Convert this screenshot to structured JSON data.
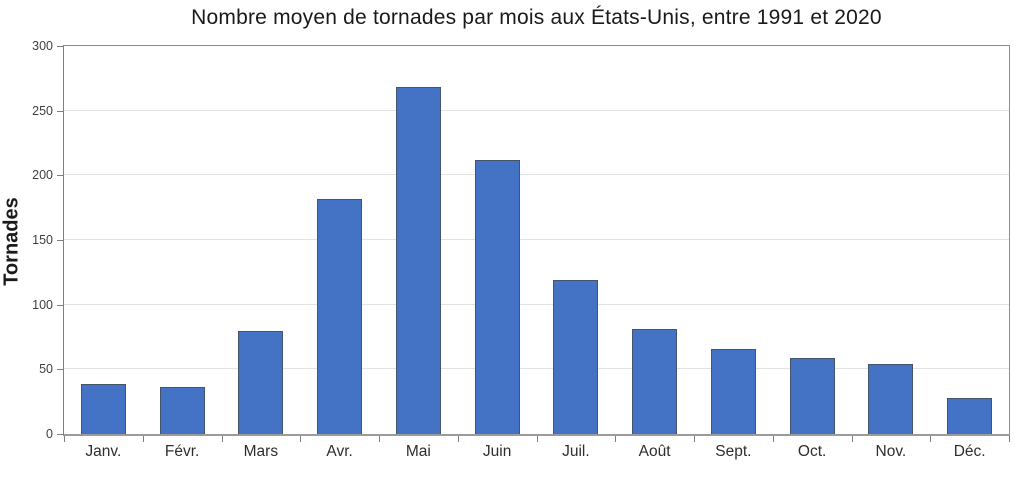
{
  "chart_data": {
    "type": "bar",
    "title": "Nombre moyen de tornades par mois aux États-Unis, entre 1991 et 2020",
    "xlabel": "",
    "ylabel": "Tornades",
    "categories": [
      "Janv.",
      "Févr.",
      "Mars",
      "Avr.",
      "Mai",
      "Juin",
      "Juil.",
      "Août",
      "Sept.",
      "Oct.",
      "Nov.",
      "Déc."
    ],
    "values": [
      39,
      36,
      80,
      182,
      268,
      212,
      119,
      81,
      66,
      59,
      54,
      28
    ],
    "ylim": [
      0,
      300
    ],
    "ytick_step": 50,
    "yticks": [
      0,
      50,
      100,
      150,
      200,
      250,
      300
    ],
    "grid": true,
    "legend": "none",
    "colors": {
      "bar_fill": "#4472c4",
      "bar_border": "#44546a",
      "gridline": "#e2e2e2",
      "axis_frame": "#8c8c8c",
      "axis_bottom": "#9b9b9b",
      "tick": "#7f7f7f",
      "title_text": "#1a1a1a",
      "tick_label_text": "#404040"
    }
  }
}
